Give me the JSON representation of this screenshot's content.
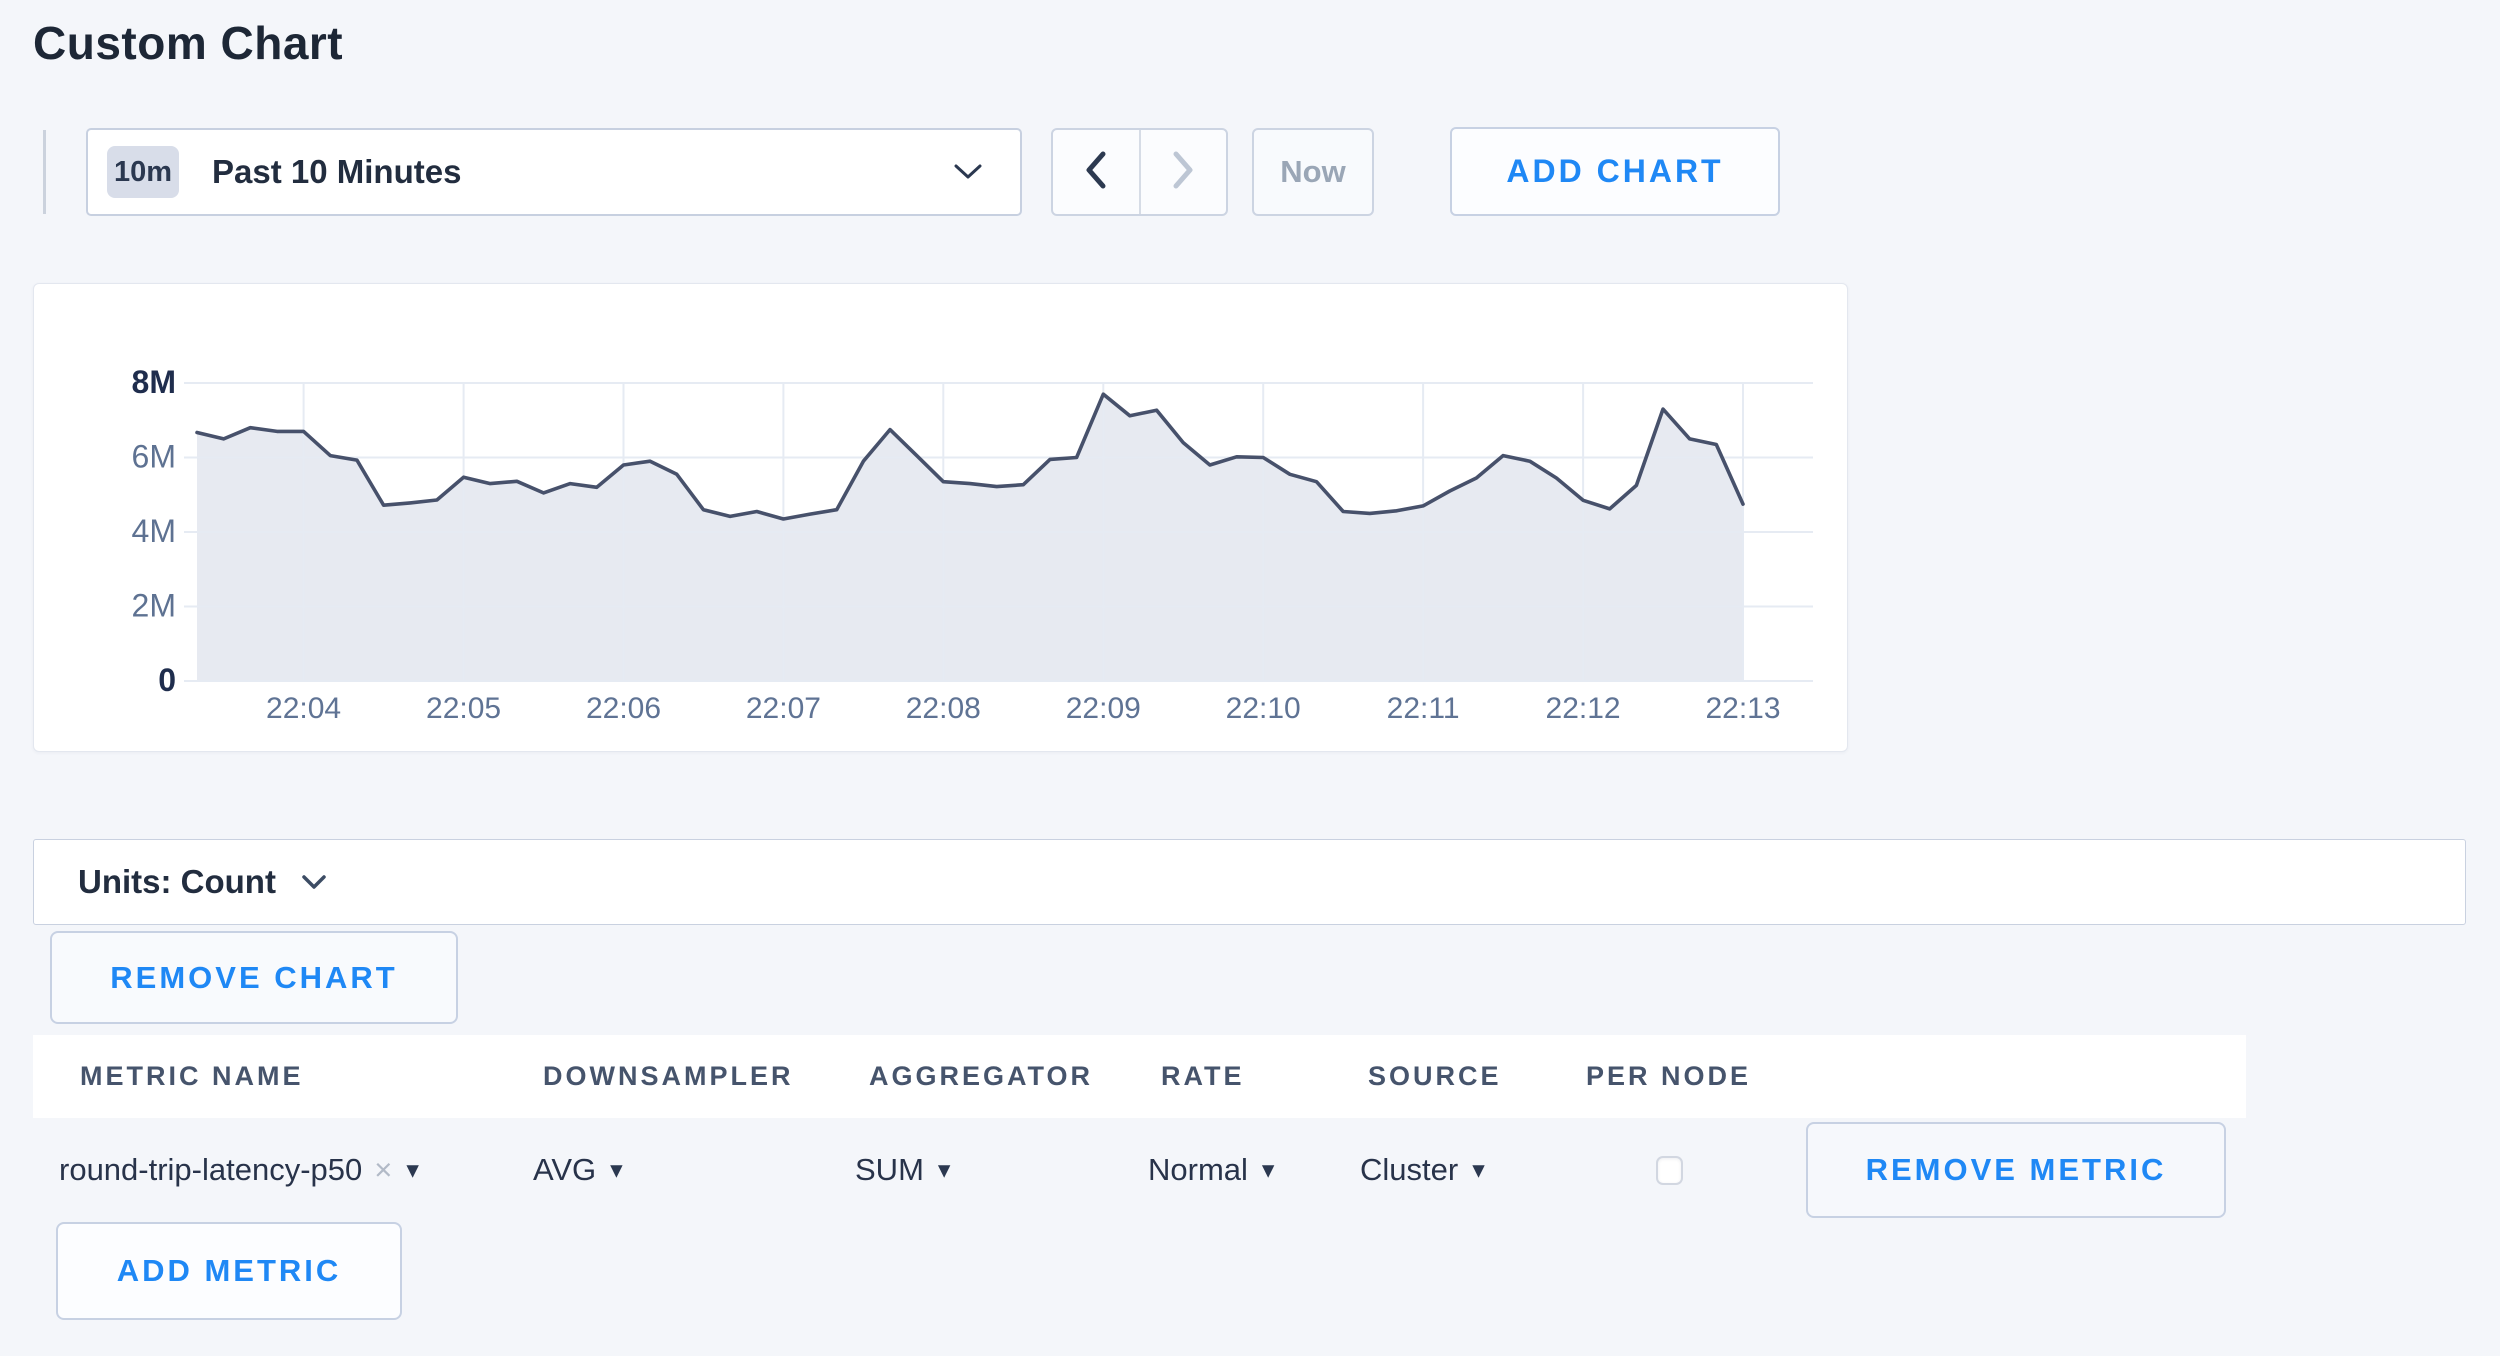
{
  "page": {
    "title": "Custom Chart",
    "background_color": "#f4f6fa",
    "accent_blue": "#1f88f5"
  },
  "toolbar": {
    "time_scale_badge": "10m",
    "time_scale_label": "Past 10 Minutes",
    "now_label": "Now",
    "add_chart_label": "ADD CHART"
  },
  "icons": {
    "caret_down": "▾",
    "remove_x": "×",
    "chevron_down": "chevron-down",
    "chevron_left": "chevron-left",
    "chevron_right": "chevron-right"
  },
  "chart_data": {
    "type": "area",
    "title": "",
    "series_name": "round-trip-latency-p50",
    "x_start": "22:03:20",
    "x_interval_seconds": 10,
    "x_ticks": [
      "22:04",
      "22:05",
      "22:06",
      "22:07",
      "22:08",
      "22:09",
      "22:10",
      "22:11",
      "22:12",
      "22:13"
    ],
    "x_tick_first_index": 4,
    "x_tick_step": 6,
    "y_ticks": [
      {
        "value": 0,
        "label": "0",
        "emphasis": true
      },
      {
        "value": 2000000,
        "label": "2M",
        "emphasis": false
      },
      {
        "value": 4000000,
        "label": "4M",
        "emphasis": false
      },
      {
        "value": 6000000,
        "label": "6M",
        "emphasis": false
      },
      {
        "value": 8000000,
        "label": "8M",
        "emphasis": true
      }
    ],
    "ylim": [
      0,
      8000000
    ],
    "grid": true,
    "legend": "none",
    "line_color": "#47516b",
    "fill_color": "#e7eaf1",
    "grid_color": "#e6ebf3",
    "values_millions": [
      6.67,
      6.5,
      6.8,
      6.7,
      6.7,
      6.05,
      5.93,
      4.72,
      4.78,
      4.86,
      5.47,
      5.3,
      5.36,
      5.05,
      5.3,
      5.2,
      5.8,
      5.9,
      5.55,
      4.6,
      4.42,
      4.55,
      4.35,
      4.48,
      4.6,
      5.9,
      6.75,
      6.05,
      5.35,
      5.3,
      5.22,
      5.27,
      5.95,
      6.0,
      7.7,
      7.12,
      7.27,
      6.4,
      5.8,
      6.02,
      6.0,
      5.55,
      5.35,
      4.55,
      4.5,
      4.57,
      4.7,
      5.1,
      5.45,
      6.05,
      5.9,
      5.45,
      4.85,
      4.62,
      5.25,
      7.3,
      6.5,
      6.35,
      4.75
    ]
  },
  "units_bar": {
    "label": "Units: Count"
  },
  "chart_actions": {
    "remove_chart_label": "REMOVE CHART"
  },
  "metrics_table": {
    "headers": [
      "METRIC NAME",
      "DOWNSAMPLER",
      "AGGREGATOR",
      "RATE",
      "SOURCE",
      "PER NODE"
    ],
    "rows": [
      {
        "metric_name": "round-trip-latency-p50",
        "downsampler": "AVG",
        "aggregator": "SUM",
        "rate": "Normal",
        "source": "Cluster",
        "per_node_checked": false,
        "remove_metric_label": "REMOVE METRIC"
      }
    ],
    "add_metric_label": "ADD METRIC"
  }
}
